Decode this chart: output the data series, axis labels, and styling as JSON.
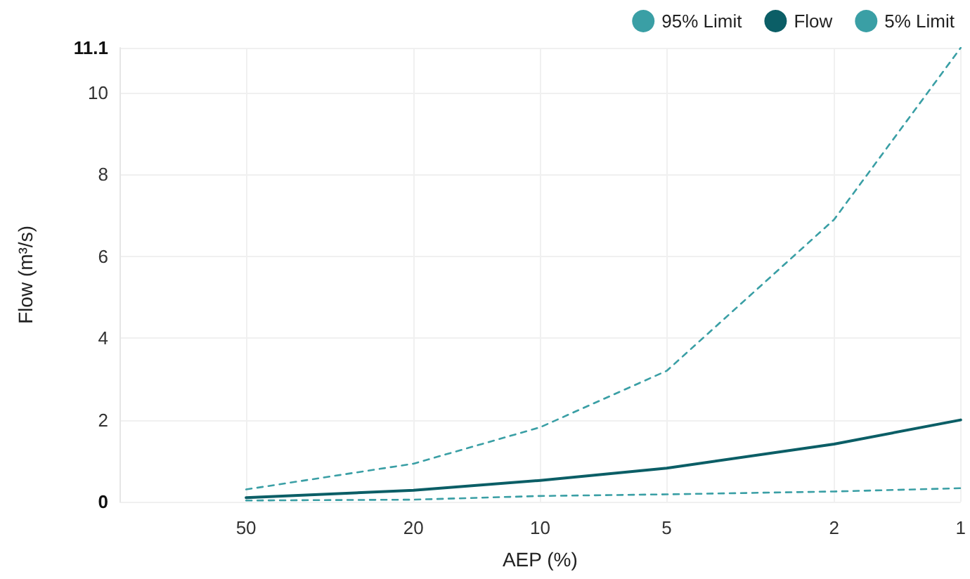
{
  "chart_data": {
    "type": "line",
    "xlabel": "AEP (%)",
    "ylabel": "Flow (m³/s)",
    "x": [
      50,
      20,
      10,
      5,
      2,
      1
    ],
    "series": [
      {
        "name": "95% Limit",
        "color": "#3a9fa5",
        "line_style": "dashed",
        "values": [
          0.3,
          0.93,
          1.82,
          3.2,
          6.9,
          11.1
        ]
      },
      {
        "name": "Flow",
        "color": "#0b5e66",
        "line_style": "solid",
        "values": [
          0.1,
          0.28,
          0.52,
          0.82,
          1.41,
          2.0
        ]
      },
      {
        "name": "5% Limit",
        "color": "#3a9fa5",
        "line_style": "dashed",
        "values": [
          0.03,
          0.05,
          0.14,
          0.18,
          0.25,
          0.33
        ]
      }
    ],
    "log": "x",
    "xlim": [
      100,
      1
    ],
    "xticks": [
      50,
      20,
      10,
      5,
      2,
      1
    ],
    "ylim": [
      0,
      11.1
    ],
    "yticks": [
      0,
      2,
      4,
      6,
      8,
      10,
      11.1
    ],
    "grid": true,
    "legend": "top right",
    "marker": "none"
  }
}
